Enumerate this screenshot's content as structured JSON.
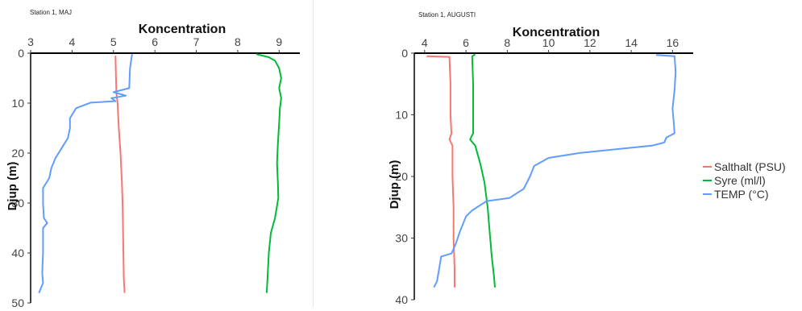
{
  "legend": {
    "items": [
      {
        "label": "Salthalt (PSU)",
        "color": "#F8766D"
      },
      {
        "label": "Syre (ml/l)",
        "color": "#00BA38"
      },
      {
        "label": "TEMP (°C)",
        "color": "#619CFF"
      }
    ]
  },
  "chart_data": [
    {
      "type": "line",
      "title": "Station 1, MAJ",
      "xlabel": "Koncentration",
      "ylabel": "Djup (m)",
      "x_ticks": [
        3,
        4,
        5,
        6,
        7,
        8,
        9
      ],
      "y_ticks": [
        0,
        10,
        20,
        30,
        40,
        50
      ],
      "xlim": [
        3,
        9.5
      ],
      "ylim": [
        0,
        50
      ],
      "series": [
        {
          "name": "Salthalt (PSU)",
          "color": "#F8766D",
          "points": [
            [
              5.05,
              0.5
            ],
            [
              5.06,
              5
            ],
            [
              5.07,
              8
            ],
            [
              5.1,
              10
            ],
            [
              5.13,
              15
            ],
            [
              5.17,
              20
            ],
            [
              5.2,
              25
            ],
            [
              5.22,
              30
            ],
            [
              5.23,
              35
            ],
            [
              5.24,
              40
            ],
            [
              5.25,
              45
            ],
            [
              5.27,
              48
            ]
          ]
        },
        {
          "name": "Syre (ml/l)",
          "color": "#00BA38",
          "points": [
            [
              8.45,
              0.2
            ],
            [
              8.75,
              0.8
            ],
            [
              8.9,
              1.5
            ],
            [
              9.0,
              3
            ],
            [
              9.05,
              5
            ],
            [
              9.0,
              7
            ],
            [
              9.05,
              9
            ],
            [
              9.02,
              11
            ],
            [
              9.0,
              14
            ],
            [
              8.97,
              18
            ],
            [
              8.95,
              22
            ],
            [
              8.97,
              26
            ],
            [
              8.98,
              29
            ],
            [
              8.9,
              33
            ],
            [
              8.8,
              36
            ],
            [
              8.75,
              40
            ],
            [
              8.72,
              45
            ],
            [
              8.7,
              48
            ]
          ]
        },
        {
          "name": "TEMP (°C)",
          "color": "#619CFF",
          "points": [
            [
              5.45,
              0.2
            ],
            [
              5.4,
              3
            ],
            [
              5.38,
              7
            ],
            [
              5.0,
              7.8
            ],
            [
              5.3,
              8.5
            ],
            [
              4.95,
              9
            ],
            [
              5.05,
              9.6
            ],
            [
              4.45,
              9.9
            ],
            [
              4.1,
              11
            ],
            [
              3.95,
              13
            ],
            [
              3.95,
              15
            ],
            [
              3.9,
              17
            ],
            [
              3.75,
              19
            ],
            [
              3.6,
              21
            ],
            [
              3.5,
              23
            ],
            [
              3.45,
              25
            ],
            [
              3.3,
              27
            ],
            [
              3.3,
              30
            ],
            [
              3.32,
              33
            ],
            [
              3.4,
              34
            ],
            [
              3.3,
              35
            ],
            [
              3.3,
              40
            ],
            [
              3.28,
              44
            ],
            [
              3.3,
              46
            ],
            [
              3.2,
              48
            ]
          ]
        }
      ]
    },
    {
      "type": "line",
      "title": "Station 1, AUGUSTI",
      "xlabel": "Koncentration",
      "ylabel": "Djup (m)",
      "x_ticks": [
        4,
        6,
        8,
        10,
        12,
        14,
        16
      ],
      "y_ticks": [
        0,
        10,
        20,
        30,
        40
      ],
      "xlim": [
        3.5,
        17
      ],
      "ylim": [
        0,
        40
      ],
      "series": [
        {
          "name": "Salthalt (PSU)",
          "color": "#F8766D",
          "points": [
            [
              4.1,
              0.5
            ],
            [
              5.2,
              0.6
            ],
            [
              5.25,
              5
            ],
            [
              5.25,
              10
            ],
            [
              5.3,
              13
            ],
            [
              5.2,
              14
            ],
            [
              5.35,
              15
            ],
            [
              5.35,
              20
            ],
            [
              5.4,
              25
            ],
            [
              5.4,
              30
            ],
            [
              5.45,
              35
            ],
            [
              5.45,
              38
            ]
          ]
        },
        {
          "name": "Syre (ml/l)",
          "color": "#00BA38",
          "points": [
            [
              6.45,
              0.2
            ],
            [
              6.3,
              0.5
            ],
            [
              6.35,
              5
            ],
            [
              6.35,
              10
            ],
            [
              6.35,
              13
            ],
            [
              6.2,
              14
            ],
            [
              6.45,
              15
            ],
            [
              6.7,
              18
            ],
            [
              6.9,
              21
            ],
            [
              7.05,
              25
            ],
            [
              7.15,
              29
            ],
            [
              7.25,
              33
            ],
            [
              7.35,
              36
            ],
            [
              7.4,
              38
            ]
          ]
        },
        {
          "name": "TEMP (°C)",
          "color": "#619CFF",
          "points": [
            [
              15.2,
              0.3
            ],
            [
              16.1,
              0.5
            ],
            [
              16.15,
              3
            ],
            [
              16.1,
              6
            ],
            [
              16.0,
              9
            ],
            [
              16.05,
              11
            ],
            [
              16.1,
              13
            ],
            [
              15.7,
              13.7
            ],
            [
              15.6,
              14.5
            ],
            [
              15.0,
              15
            ],
            [
              13.5,
              15.5
            ],
            [
              11.5,
              16.2
            ],
            [
              10.0,
              17
            ],
            [
              9.3,
              18.3
            ],
            [
              9.1,
              20
            ],
            [
              8.8,
              22
            ],
            [
              8.1,
              23.5
            ],
            [
              7.0,
              24
            ],
            [
              6.3,
              25.5
            ],
            [
              6.0,
              26.5
            ],
            [
              5.7,
              29
            ],
            [
              5.5,
              31
            ],
            [
              5.3,
              32.5
            ],
            [
              4.8,
              33
            ],
            [
              4.7,
              35
            ],
            [
              4.6,
              37
            ],
            [
              4.45,
              38
            ]
          ]
        }
      ]
    }
  ]
}
